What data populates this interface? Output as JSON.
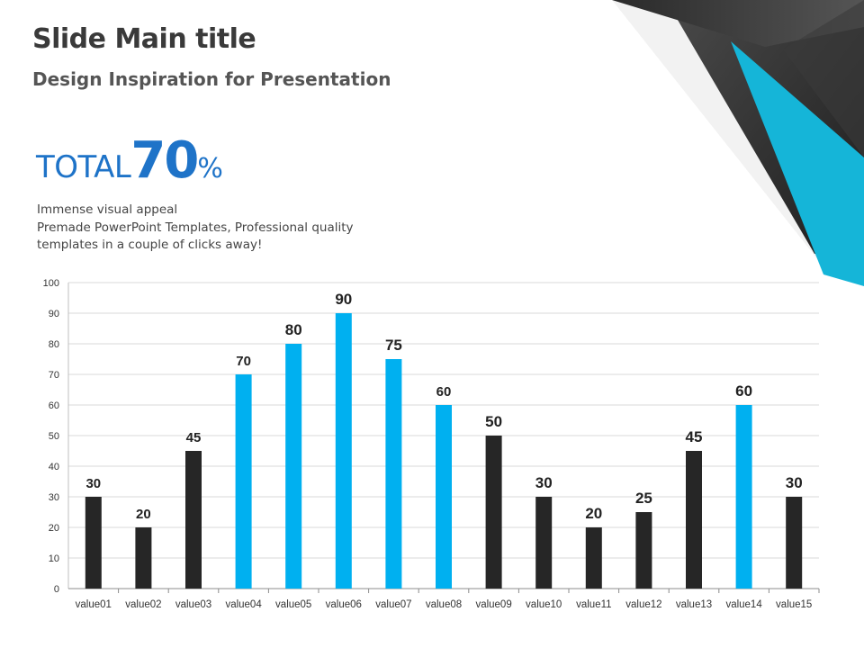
{
  "header": {
    "title": "Slide Main title",
    "subtitle": "Design Inspiration for Presentation"
  },
  "stat": {
    "word": "TOTAL",
    "value": "70",
    "unit": "%"
  },
  "description": [
    "Immense visual appeal",
    "Premade PowerPoint Templates, Professional quality",
    "templates in a couple of clicks away!"
  ],
  "colors": {
    "dark": "#262626",
    "accent": "#00b0f0",
    "stat_blue": "#1e73c8"
  },
  "chart_data": {
    "type": "bar",
    "categories": [
      "value01",
      "value02",
      "value03",
      "value04",
      "value05",
      "value06",
      "value07",
      "value08",
      "value09",
      "value10",
      "value11",
      "value12",
      "value13",
      "value14",
      "value15"
    ],
    "values": [
      30,
      20,
      45,
      70,
      80,
      90,
      75,
      60,
      50,
      30,
      20,
      25,
      45,
      60,
      30
    ],
    "highlighted": [
      false,
      false,
      false,
      true,
      true,
      true,
      true,
      true,
      false,
      false,
      false,
      false,
      false,
      true,
      false
    ],
    "ylim": [
      0,
      100
    ],
    "yticks": [
      0,
      10,
      20,
      30,
      40,
      50,
      60,
      70,
      80,
      90,
      100
    ],
    "data_labels": true,
    "grid": true,
    "legend": "none"
  }
}
